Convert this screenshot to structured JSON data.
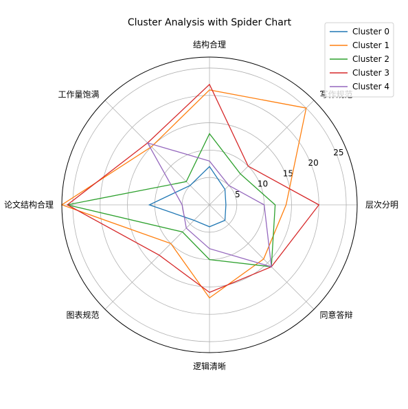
{
  "chart_data": {
    "type": "radar",
    "title": "Cluster Analysis with Spider Chart",
    "categories": [
      "层次分明",
      "写作规范",
      "结构合理",
      "工作量饱满",
      "论文结构合理",
      "图表规范",
      "逻辑清晰",
      "同意答辩"
    ],
    "rlim": [
      0,
      27
    ],
    "rticks": [
      5,
      10,
      15,
      20,
      25
    ],
    "grid": true,
    "legend_position": "top-right",
    "series": [
      {
        "name": "Cluster 0",
        "color": "#1f77b4",
        "values": [
          3,
          4,
          7,
          5,
          11,
          4,
          4,
          4
        ]
      },
      {
        "name": "Cluster 1",
        "color": "#ff7f0e",
        "values": [
          14,
          25,
          21,
          15,
          27,
          10,
          17,
          14
        ]
      },
      {
        "name": "Cluster 2",
        "color": "#2ca02c",
        "values": [
          12,
          8,
          13,
          6,
          26,
          7,
          10,
          16
        ]
      },
      {
        "name": "Cluster 3",
        "color": "#d62728",
        "values": [
          20,
          10,
          22,
          16,
          26,
          13,
          16,
          16
        ]
      },
      {
        "name": "Cluster 4",
        "color": "#9467bd",
        "values": [
          10,
          5,
          8,
          16,
          5,
          6,
          8,
          16
        ]
      }
    ]
  }
}
